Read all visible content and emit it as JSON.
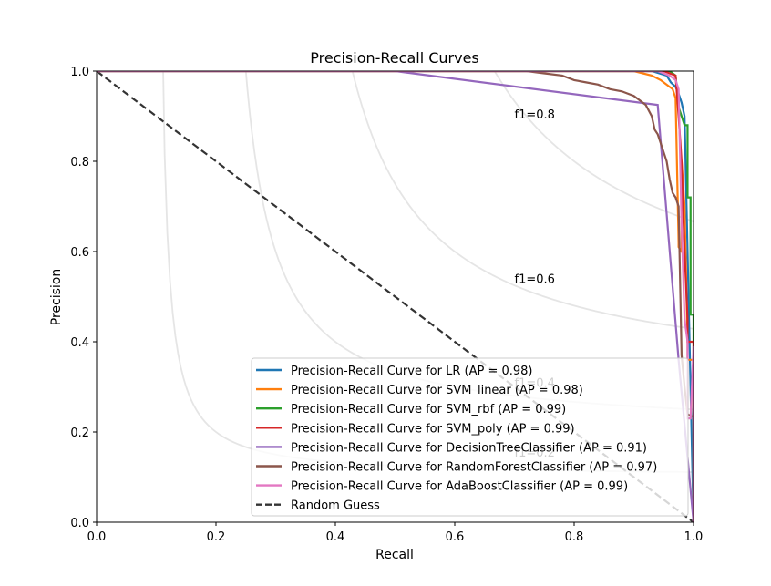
{
  "chart_data": {
    "type": "line",
    "title": "Precision-Recall Curves",
    "xlabel": "Recall",
    "ylabel": "Precision",
    "xlim": [
      0.0,
      1.0
    ],
    "ylim": [
      0.0,
      1.0
    ],
    "xticks": [
      "0.0",
      "0.2",
      "0.4",
      "0.6",
      "0.8",
      "1.0"
    ],
    "yticks": [
      "0.0",
      "0.2",
      "0.4",
      "0.6",
      "0.8",
      "1.0"
    ],
    "xtick_values": [
      0.0,
      0.2,
      0.4,
      0.6,
      0.8,
      1.0
    ],
    "ytick_values": [
      0.0,
      0.2,
      0.4,
      0.6,
      0.8,
      1.0
    ],
    "grid": false,
    "legend_position": "lower-right",
    "iso_f1": [
      {
        "f1": 0.2,
        "label": "f1=0.2",
        "label_at": [
          0.7,
          0.145
        ]
      },
      {
        "f1": 0.4,
        "label": "f1=0.4",
        "label_at": [
          0.7,
          0.3
        ]
      },
      {
        "f1": 0.6,
        "label": "f1=0.6",
        "label_at": [
          0.7,
          0.53
        ]
      },
      {
        "f1": 0.8,
        "label": "f1=0.8",
        "label_at": [
          0.7,
          0.895
        ]
      }
    ],
    "series": [
      {
        "name": "Precision-Recall Curve for LR (AP = 0.98)",
        "color": "#1f77b4",
        "x": [
          0.0,
          0.93,
          0.955,
          0.962,
          0.97,
          0.975,
          0.98,
          0.985,
          0.99,
          1.0
        ],
        "y": [
          1.0,
          1.0,
          0.99,
          0.975,
          0.965,
          0.95,
          0.93,
          0.9,
          0.6,
          0.0
        ]
      },
      {
        "name": "Precision-Recall Curve for SVM_linear (AP = 0.98)",
        "color": "#ff7f0e",
        "x": [
          0.0,
          0.9,
          0.93,
          0.945,
          0.955,
          0.965,
          0.97,
          0.975,
          0.975,
          0.98,
          0.98,
          0.985,
          0.99,
          0.99,
          1.0,
          1.0
        ],
        "y": [
          1.0,
          1.0,
          0.99,
          0.98,
          0.97,
          0.96,
          0.94,
          0.62,
          0.61,
          0.6,
          0.8,
          0.7,
          0.4,
          0.36,
          0.36,
          0.0
        ]
      },
      {
        "name": "Precision-Recall Curve for SVM_rbf (AP = 0.99)",
        "color": "#2ca02c",
        "x": [
          0.0,
          0.96,
          0.97,
          0.975,
          0.98,
          0.985,
          0.99,
          0.99,
          0.995,
          0.995,
          1.0,
          1.0
        ],
        "y": [
          1.0,
          1.0,
          0.99,
          0.92,
          0.9,
          0.88,
          0.88,
          0.72,
          0.72,
          0.46,
          0.46,
          0.0
        ]
      },
      {
        "name": "Precision-Recall Curve for SVM_poly (AP = 0.99)",
        "color": "#d62728",
        "x": [
          0.0,
          0.92,
          0.95,
          0.97,
          0.975,
          0.98,
          0.985,
          0.99,
          0.99,
          0.995,
          1.0,
          1.0
        ],
        "y": [
          1.0,
          1.0,
          1.0,
          0.99,
          0.9,
          0.8,
          0.6,
          0.45,
          0.4,
          0.4,
          0.4,
          0.0
        ]
      },
      {
        "name": "Precision-Recall Curve for DecisionTreeClassifier (AP = 0.91)",
        "color": "#9467bd",
        "x": [
          0.0,
          0.5,
          0.94,
          0.975,
          1.0
        ],
        "y": [
          1.0,
          1.0,
          0.925,
          0.36,
          0.0
        ]
      },
      {
        "name": "Precision-Recall Curve for RandomForestClassifier (AP = 0.97)",
        "color": "#8c564b",
        "x": [
          0.0,
          0.72,
          0.75,
          0.78,
          0.8,
          0.82,
          0.84,
          0.86,
          0.88,
          0.9,
          0.91,
          0.92,
          0.93,
          0.935,
          0.94,
          0.945,
          0.95,
          0.955,
          0.96,
          0.965,
          0.97,
          0.975,
          0.98,
          0.985,
          0.99,
          0.995,
          1.0
        ],
        "y": [
          1.0,
          1.0,
          0.995,
          0.99,
          0.98,
          0.975,
          0.97,
          0.96,
          0.955,
          0.945,
          0.935,
          0.925,
          0.9,
          0.87,
          0.86,
          0.84,
          0.82,
          0.8,
          0.76,
          0.73,
          0.72,
          0.7,
          0.37,
          0.3,
          0.24,
          0.235,
          0.235
        ]
      },
      {
        "name": "Precision-Recall Curve for AdaBoostClassifier (AP = 0.99)",
        "color": "#e377c2",
        "x": [
          0.0,
          0.94,
          0.96,
          0.97,
          0.975,
          0.98,
          0.985,
          0.99,
          0.99,
          0.995,
          1.0,
          1.0
        ],
        "y": [
          1.0,
          1.0,
          0.99,
          0.98,
          0.96,
          0.66,
          0.45,
          0.4,
          0.23,
          0.23,
          0.39,
          0.0
        ]
      }
    ],
    "baseline": {
      "name": "Random Guess",
      "color": "#333333",
      "x": [
        0.0,
        1.0
      ],
      "y": [
        1.0,
        0.0
      ]
    }
  }
}
